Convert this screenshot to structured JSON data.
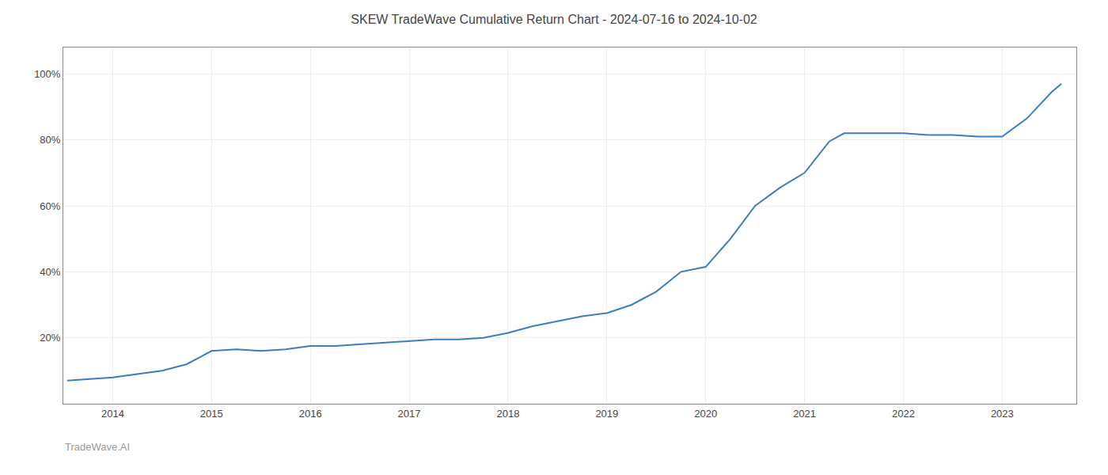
{
  "chart_data": {
    "type": "line",
    "title": "SKEW TradeWave Cumulative Return Chart - 2024-07-16 to 2024-10-02",
    "annotations": [
      "TradeWave.AI"
    ],
    "x": [
      2013.54,
      2013.75,
      2014.0,
      2014.25,
      2014.5,
      2014.75,
      2015.0,
      2015.25,
      2015.5,
      2015.75,
      2016.0,
      2016.25,
      2016.5,
      2016.75,
      2017.0,
      2017.25,
      2017.5,
      2017.75,
      2018.0,
      2018.25,
      2018.5,
      2018.75,
      2019.0,
      2019.25,
      2019.5,
      2019.75,
      2020.0,
      2020.25,
      2020.5,
      2020.75,
      2021.0,
      2021.25,
      2021.4,
      2021.6,
      2021.8,
      2022.0,
      2022.25,
      2022.5,
      2022.75,
      2023.0,
      2023.25,
      2023.5,
      2023.6
    ],
    "values": [
      0.07,
      0.075,
      0.08,
      0.09,
      0.1,
      0.12,
      0.16,
      0.165,
      0.16,
      0.165,
      0.175,
      0.175,
      0.18,
      0.185,
      0.19,
      0.195,
      0.195,
      0.2,
      0.215,
      0.235,
      0.25,
      0.265,
      0.275,
      0.3,
      0.34,
      0.4,
      0.415,
      0.5,
      0.6,
      0.655,
      0.7,
      0.795,
      0.82,
      0.82,
      0.82,
      0.82,
      0.815,
      0.815,
      0.81,
      0.81,
      0.865,
      0.945,
      0.97
    ],
    "color": "#3a7ebf",
    "xlim": [
      2013.5,
      2023.75
    ],
    "ylim": [
      0.0,
      1.08
    ],
    "xticks": [
      2014,
      2015,
      2016,
      2017,
      2018,
      2019,
      2020,
      2021,
      2022,
      2023
    ],
    "yticks": [
      {
        "value": 0.2,
        "label": "20%"
      },
      {
        "value": 0.4,
        "label": "40%"
      },
      {
        "value": 0.6,
        "label": "60%"
      },
      {
        "value": 0.8,
        "label": "80%"
      },
      {
        "value": 1.0,
        "label": "100%"
      }
    ],
    "grid": true
  }
}
